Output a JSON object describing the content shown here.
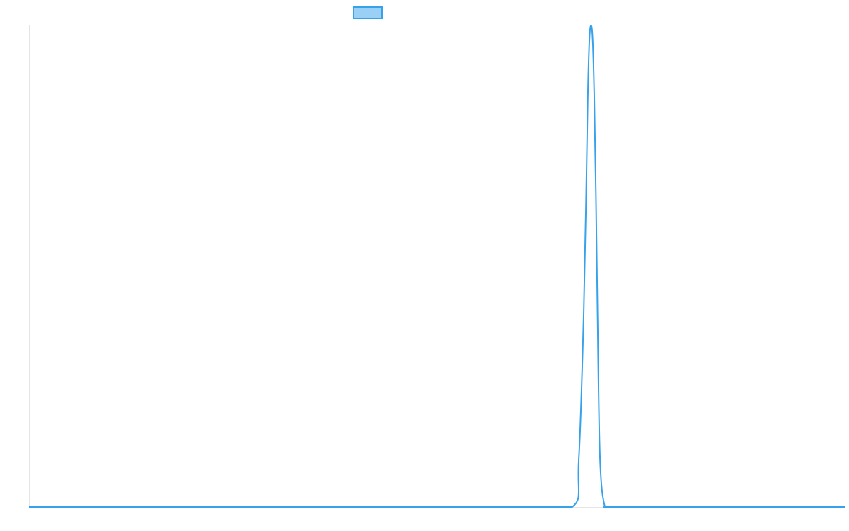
{
  "chart_data": {
    "type": "line",
    "title": "",
    "xlabel": "",
    "ylabel": "",
    "x_range": [
      0,
      100
    ],
    "y_range": [
      0,
      1
    ],
    "grid": false,
    "legend": {
      "placement": "top-center",
      "entries": [
        {
          "label": ""
        }
      ]
    },
    "series": [
      {
        "color": "#36A2EB",
        "fill": "#9AD0F5",
        "x": [
          0,
          10,
          20,
          30,
          40,
          50,
          60,
          66.6,
          67.4,
          68.0,
          68.3,
          68.5,
          68.7,
          68.9,
          69.1,
          69.3,
          69.5,
          69.7,
          70.0,
          70.6,
          71.4,
          80,
          90,
          100
        ],
        "y": [
          0,
          0,
          0,
          0,
          0,
          0,
          0,
          0,
          0.1,
          0.4,
          0.65,
          0.85,
          0.97,
          1.0,
          0.97,
          0.85,
          0.65,
          0.4,
          0.1,
          0,
          0,
          0,
          0,
          0
        ]
      }
    ]
  }
}
